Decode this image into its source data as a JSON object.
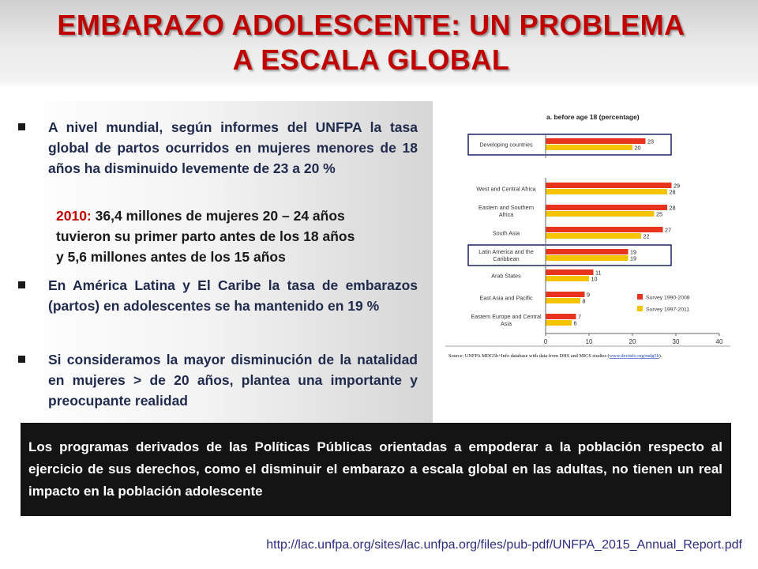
{
  "slide": {
    "title_line1": "EMBARAZO ADOLESCENTE: UN PROBLEMA",
    "title_line2": "A ESCALA GLOBAL",
    "title_color": "#c00000",
    "bullets": [
      "A nivel mundial, según informes del UNFPA la tasa global de partos ocurridos en mujeres menores de 18 años ha disminuido levemente de 23 a 20 %",
      "En América Latina y El Caribe la tasa de embarazos (partos) en adolescentes se ha mantenido en 19 %",
      "Si consideramos la mayor disminución de la natalidad en mujeres > de 20 años, plantea una importante y preocupante realidad"
    ],
    "sub_year": "2010:",
    "sub_rest_line1": " 36,4 millones de mujeres 20 – 24 años",
    "sub_rest_line2": "tuvieron su primer parto antes de los 18 años",
    "sub_rest_line3": "y 5,6 millones antes de los 15 años",
    "bottom_text": "Los programas derivados de las Políticas Públicas orientadas a empoderar a la población respecto al ejercicio de sus derechos, como el disminuir el embarazo a escala global  en las adultas, no tienen un real impacto en la población adolescente",
    "url": "http://lac.unfpa.org/sites/lac.unfpa.org/files/pub-pdf/UNFPA_2015_Annual_Report.pdf"
  },
  "chart_data": {
    "type": "bar",
    "orientation": "horizontal",
    "title": "a. before age 18 (percentage)",
    "categories": [
      [
        "Developing countries"
      ],
      [
        "West and Central Africa"
      ],
      [
        "Eastern and Southern",
        "Africa"
      ],
      [
        "South Asia"
      ],
      [
        "Latin America and the",
        "Caribbean"
      ],
      [
        "Arab States"
      ],
      [
        "East Asia and Pacific"
      ],
      [
        "Eastern Europe and Central",
        "Asia"
      ]
    ],
    "series": [
      {
        "name": "Survey 1990-2008",
        "color": "#e8341c",
        "values": [
          23,
          29,
          28,
          27,
          19,
          11,
          9,
          7
        ]
      },
      {
        "name": "Survey 1997-2011",
        "color": "#f5c400",
        "values": [
          20,
          28,
          25,
          22,
          19,
          10,
          8,
          6
        ]
      }
    ],
    "xlim": [
      0,
      40
    ],
    "xticks": [
      0,
      10,
      20,
      30,
      40
    ],
    "highlighted_categories": [
      0,
      4
    ],
    "legend_position": "bottom-right",
    "grid": false,
    "source_prefix": "Source: UNFPA MDG5b+Info database with data from DHS and MICS studies (",
    "source_link": "www.devinfo.org/mdg5b",
    "source_suffix": ")."
  }
}
